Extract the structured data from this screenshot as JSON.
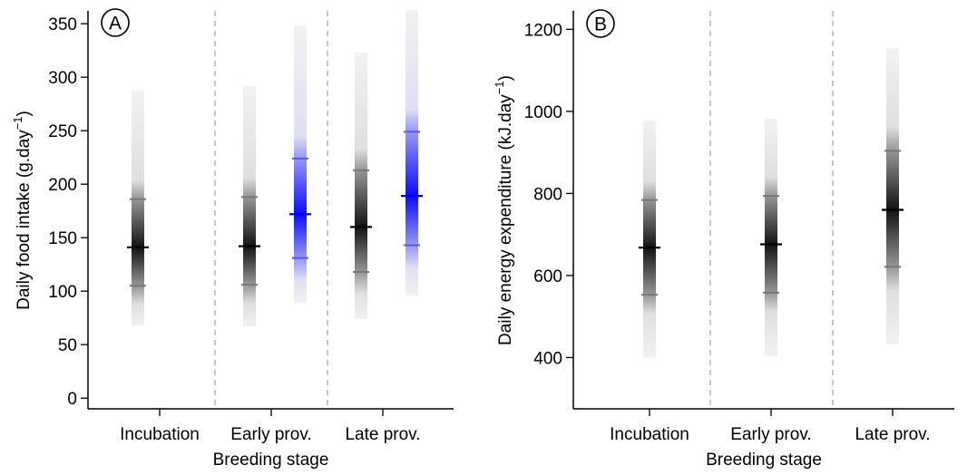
{
  "chart_data": [
    {
      "type": "interval",
      "panel_label": "A",
      "ylabel": "Daily food intake (g.day",
      "ylabel_sup": "−1",
      "ylabel_close": ")",
      "xlabel": "Breeding stage",
      "categories": [
        "Incubation",
        "Early prov.",
        "Late prov."
      ],
      "ylim": [
        -10,
        362
      ],
      "yticks": [
        0,
        50,
        100,
        150,
        200,
        250,
        300,
        350
      ],
      "grid": false,
      "colors": {
        "black": "#000000",
        "blue": "#0000ff"
      },
      "series": [
        {
          "color": "blue",
          "points": [
            {
              "category": "Early prov.",
              "median": 172,
              "inner": [
                131,
                224
              ],
              "outer": [
                89,
                348
              ]
            },
            {
              "category": "Late prov.",
              "median": 189,
              "inner": [
                143,
                249
              ],
              "outer": [
                96,
                363
              ]
            }
          ]
        },
        {
          "color": "black",
          "points": [
            {
              "category": "Incubation",
              "median": 141,
              "inner": [
                105,
                186
              ],
              "outer": [
                68,
                288
              ]
            },
            {
              "category": "Early prov.",
              "median": 142,
              "inner": [
                106,
                188
              ],
              "outer": [
                67,
                292
              ]
            },
            {
              "category": "Late prov.",
              "median": 160,
              "inner": [
                118,
                213
              ],
              "outer": [
                74,
                323
              ]
            }
          ]
        }
      ]
    },
    {
      "type": "interval",
      "panel_label": "B",
      "ylabel": "Daily energy expenditure (kJ.day",
      "ylabel_sup": "−1",
      "ylabel_close": ")",
      "xlabel": "Breeding stage",
      "categories": [
        "Incubation",
        "Early prov.",
        "Late prov."
      ],
      "ylim": [
        275,
        1245
      ],
      "yticks": [
        400,
        600,
        800,
        1000,
        1200
      ],
      "grid": false,
      "colors": {
        "black": "#000000"
      },
      "series": [
        {
          "color": "black",
          "points": [
            {
              "category": "Incubation",
              "median": 668,
              "inner": [
                553,
                784
              ],
              "outer": [
                398,
                977
              ]
            },
            {
              "category": "Early prov.",
              "median": 676,
              "inner": [
                558,
                794
              ],
              "outer": [
                403,
                982
              ]
            },
            {
              "category": "Late prov.",
              "median": 760,
              "inner": [
                621,
                904
              ],
              "outer": [
                433,
                1154
              ]
            }
          ]
        }
      ]
    }
  ]
}
